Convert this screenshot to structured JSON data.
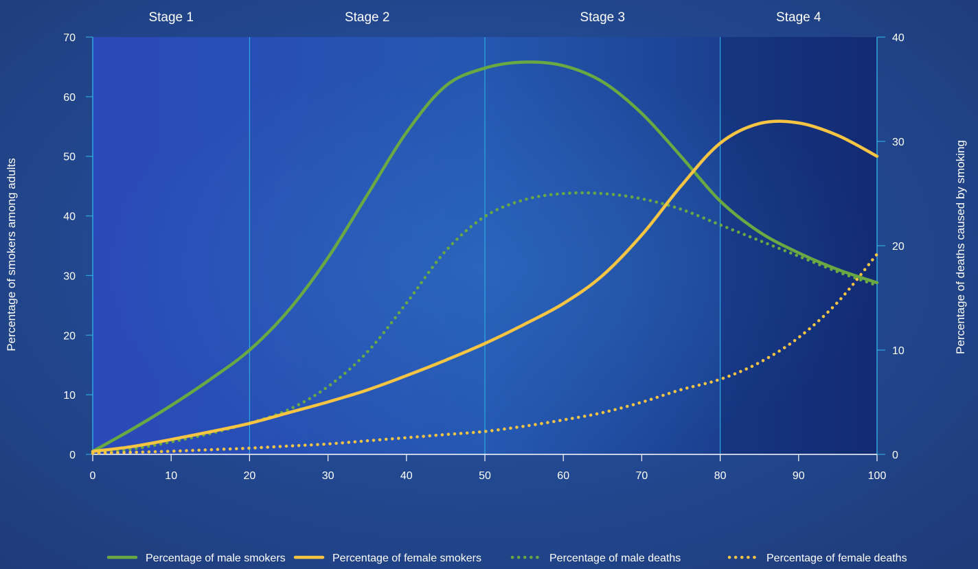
{
  "chart_data": {
    "type": "line",
    "title": "",
    "xlabel": "",
    "ylabel": "Percentage of smokers among adults",
    "y2label": "Percentage of deaths caused by smoking",
    "xlim": [
      0,
      100
    ],
    "ylim": [
      0,
      70
    ],
    "y2lim": [
      0,
      40
    ],
    "x_ticks": [
      0,
      10,
      20,
      30,
      40,
      50,
      60,
      70,
      80,
      90,
      100
    ],
    "y_ticks": [
      0,
      10,
      20,
      30,
      40,
      50,
      60,
      70
    ],
    "y2_ticks": [
      0,
      10,
      20,
      30,
      40
    ],
    "grid": false,
    "legend_position": "bottom",
    "stages": [
      {
        "label": "Stage 1",
        "start": 0,
        "end": 20
      },
      {
        "label": "Stage 2",
        "start": 20,
        "end": 50
      },
      {
        "label": "Stage 3",
        "start": 50,
        "end": 80
      },
      {
        "label": "Stage 4",
        "start": 80,
        "end": 100
      }
    ],
    "stage_boundaries": [
      20,
      50,
      80
    ],
    "series": [
      {
        "name": "Percentage of male smokers",
        "axis": "left",
        "style": "solid",
        "color": "#6aa843",
        "x": [
          0,
          5,
          10,
          15,
          20,
          25,
          30,
          35,
          40,
          45,
          50,
          55,
          60,
          65,
          70,
          75,
          80,
          85,
          90,
          95,
          100
        ],
        "y": [
          0.5,
          4.2,
          8.2,
          12.6,
          17.5,
          24.2,
          33,
          43.5,
          54,
          61.8,
          64.8,
          65.8,
          65.2,
          62.5,
          57.2,
          50,
          42.5,
          37.3,
          33.8,
          31,
          28.8
        ]
      },
      {
        "name": "Percentage of female smokers",
        "axis": "left",
        "style": "solid",
        "color": "#f7c443",
        "x": [
          0,
          5,
          10,
          15,
          20,
          25,
          30,
          35,
          40,
          45,
          50,
          55,
          60,
          65,
          70,
          75,
          80,
          85,
          90,
          95,
          100
        ],
        "y": [
          0.5,
          1.3,
          2.5,
          3.8,
          5.2,
          7,
          8.8,
          10.8,
          13.2,
          15.8,
          18.6,
          21.8,
          25.3,
          30,
          36.8,
          45,
          52.2,
          55.5,
          55.6,
          53.5,
          50
        ]
      },
      {
        "name": "Percentage of male deaths",
        "axis": "right",
        "style": "dotted",
        "color": "#6aa843",
        "x": [
          0,
          5,
          10,
          15,
          20,
          25,
          30,
          35,
          40,
          45,
          50,
          55,
          60,
          65,
          70,
          75,
          80,
          85,
          90,
          95,
          100
        ],
        "y": [
          0.1,
          0.5,
          1.2,
          2,
          3,
          4.3,
          6.5,
          9.8,
          14.5,
          19.5,
          22.8,
          24.4,
          25,
          25,
          24.5,
          23.5,
          22,
          20.5,
          19,
          17.5,
          16.2
        ]
      },
      {
        "name": "Percentage of female deaths",
        "axis": "right",
        "style": "dotted",
        "color": "#f7c443",
        "x": [
          0,
          5,
          10,
          15,
          20,
          25,
          30,
          35,
          40,
          45,
          50,
          55,
          60,
          65,
          70,
          75,
          80,
          85,
          90,
          95,
          100
        ],
        "y": [
          0.1,
          0.2,
          0.3,
          0.45,
          0.6,
          0.8,
          1,
          1.3,
          1.6,
          1.9,
          2.2,
          2.7,
          3.3,
          4,
          5,
          6.2,
          7.2,
          8.8,
          11.2,
          14.6,
          19.2
        ]
      }
    ]
  },
  "colors": {
    "plot_bg_left": "#2b49b8",
    "plot_bg_mid": "#2457b0",
    "plot_bg_right": "#15307a",
    "axis_line": "#2ea8e0",
    "male": "#6aa843",
    "female": "#f7c443"
  }
}
